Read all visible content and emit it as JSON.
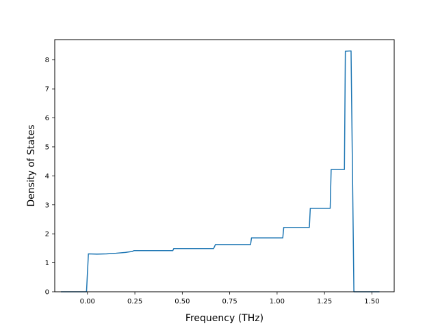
{
  "chart_data": {
    "type": "line",
    "title": "",
    "xlabel": "Frequency (THz)",
    "ylabel": "Density of States",
    "xlim": [
      -0.1725,
      1.6175
    ],
    "ylim": [
      0,
      8.7
    ],
    "grid": false,
    "legend": "none",
    "color": "#1f77b4",
    "x_ticks": [
      0.0,
      0.25,
      0.5,
      0.75,
      1.0,
      1.25,
      1.5
    ],
    "x_tick_labels": [
      "0.00",
      "0.25",
      "0.50",
      "0.75",
      "1.00",
      "1.25",
      "1.50"
    ],
    "y_ticks": [
      0,
      1,
      2,
      3,
      4,
      5,
      6,
      7,
      8
    ],
    "y_tick_labels": [
      "0",
      "1",
      "2",
      "3",
      "4",
      "5",
      "6",
      "7",
      "8"
    ],
    "series": [
      {
        "x": [
          -0.14,
          -0.005,
          0.005,
          0.05,
          0.1,
          0.15,
          0.2,
          0.235,
          0.245,
          0.45,
          0.455,
          0.665,
          0.675,
          0.86,
          0.865,
          1.03,
          1.035,
          1.17,
          1.175,
          1.28,
          1.285,
          1.355,
          1.36,
          1.39,
          1.405,
          1.54
        ],
        "y": [
          0.0,
          0.0,
          1.31,
          1.3,
          1.31,
          1.33,
          1.36,
          1.39,
          1.42,
          1.42,
          1.49,
          1.49,
          1.63,
          1.63,
          1.86,
          1.86,
          2.22,
          2.22,
          2.88,
          2.88,
          4.22,
          4.22,
          8.3,
          8.31,
          0.0,
          0.0
        ]
      }
    ]
  }
}
